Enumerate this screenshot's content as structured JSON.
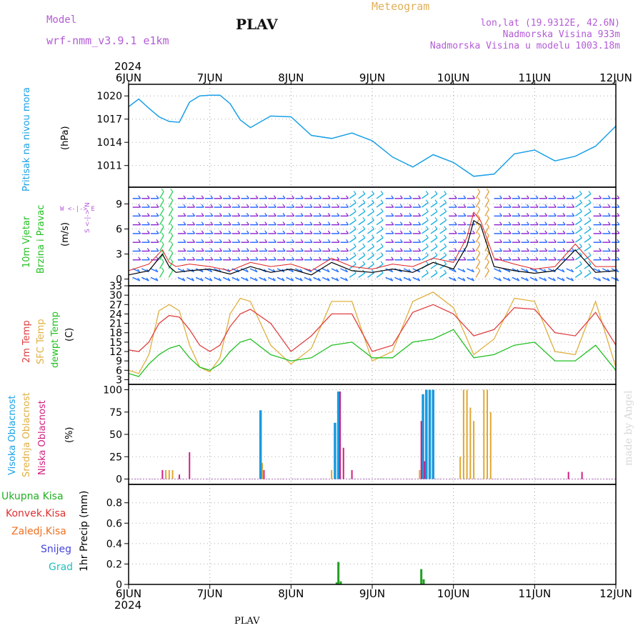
{
  "header": {
    "model_label": "Model",
    "model_name": "wrf-nmm_v3.9.1  e1km",
    "station": "PLAV",
    "meteogram": "Meteogram",
    "lonlat": "lon,lat (19.9312E, 42.6N)",
    "elevation": "Nadmorska Visina 933m",
    "model_elevation": "Nadmorska Visina u modelu 1003.18m",
    "year_top": "2024",
    "year_bottom": "2024",
    "footer_station": "PLAV",
    "watermark": "made by Angel"
  },
  "axis_labels": {
    "pressure_name": "Pritisak na nivou mora",
    "pressure_unit": "(hPa)",
    "wind_name1": "10m Vjetar",
    "wind_name2": "Brzina i Pravac",
    "wind_unit": "(m/s)",
    "wind_compass": "W <-|-> E",
    "wind_compass2": "S <-|-> N",
    "temp_name1": "2m Temp",
    "temp_name2": "SFC Temp",
    "temp_name3": "dewpt Temp",
    "temp_unit": "(C)",
    "cloud_name1": "Visoka Oblacnost",
    "cloud_name2": "Srednja Oblacnost",
    "cloud_name3": "Niska Oblacnost",
    "cloud_unit": "(%)",
    "precip_unit": "1hr Precip (mm)"
  },
  "precip_legend": [
    {
      "label": "Ukupna  Kisa",
      "color": "#22b022"
    },
    {
      "label": "Konvek.Kisa",
      "color": "#e03030"
    },
    {
      "label": "Zaledj.Kisa",
      "color": "#f07020"
    },
    {
      "label": "Snijeg",
      "color": "#4444dd"
    },
    {
      "label": "Grad",
      "color": "#20c0c0"
    }
  ],
  "colors": {
    "pressure": "#1aa0e6",
    "temp2m": "#e04040",
    "sfc": "#e0b040",
    "dewpt": "#22c022",
    "cloud_high": "#1a9ae0",
    "cloud_mid": "#e0a830",
    "cloud_low": "#d02080",
    "precip_total": "#22a022",
    "wind_purple": "#8a22d0",
    "wind_speed": "#000000",
    "wind_gust": "#e02020"
  },
  "chart_data": [
    {
      "type": "line",
      "name": "pressure",
      "x_ticks": [
        "6JUN",
        "7JUN",
        "8JUN",
        "9JUN",
        "10JUN",
        "11JUN",
        "12JUN"
      ],
      "y_ticks": [
        1011,
        1014,
        1017,
        1020
      ],
      "ylim": [
        1008.2,
        1021.5
      ],
      "x_hours": [
        0,
        3,
        6,
        9,
        12,
        15,
        18,
        21,
        24,
        27,
        30,
        33,
        36,
        42,
        48,
        54,
        60,
        66,
        72,
        78,
        84,
        90,
        96,
        102,
        108,
        114,
        120,
        126,
        132,
        138,
        144
      ],
      "values": [
        1018.6,
        1019.6,
        1018.4,
        1017.3,
        1016.7,
        1016.6,
        1019.2,
        1020.0,
        1020.1,
        1020.1,
        1019.0,
        1016.9,
        1015.9,
        1017.4,
        1017.3,
        1014.9,
        1014.5,
        1015.2,
        1014.2,
        1012.1,
        1010.8,
        1012.4,
        1011.4,
        1009.6,
        1009.9,
        1012.5,
        1013.0,
        1011.6,
        1012.2,
        1013.5,
        1016.1
      ]
    },
    {
      "type": "line",
      "name": "wind",
      "y_ticks": [
        0,
        3,
        6,
        9
      ],
      "ylim": [
        -0.8,
        11
      ],
      "x_hours": [
        0,
        6,
        10,
        12,
        14,
        18,
        24,
        30,
        36,
        42,
        48,
        54,
        60,
        66,
        72,
        78,
        84,
        90,
        96,
        100,
        102,
        104,
        108,
        114,
        120,
        126,
        132,
        138,
        144
      ],
      "speed": [
        0.5,
        1.0,
        3.0,
        1.5,
        0.8,
        1.0,
        1.2,
        0.6,
        1.5,
        0.8,
        1.2,
        0.5,
        2.0,
        1.0,
        0.8,
        1.2,
        0.8,
        2.0,
        1.2,
        4.0,
        7.0,
        6.5,
        1.5,
        1.0,
        0.7,
        1.0,
        3.5,
        0.8,
        1.0
      ],
      "gust": [
        1.0,
        1.8,
        3.5,
        2.0,
        1.5,
        1.8,
        1.5,
        1.0,
        2.0,
        1.5,
        1.8,
        1.0,
        2.5,
        1.5,
        1.2,
        1.8,
        1.5,
        2.5,
        2.0,
        5.0,
        8.0,
        7.0,
        2.5,
        1.8,
        1.2,
        1.5,
        4.2,
        1.5,
        1.5
      ]
    },
    {
      "type": "line",
      "name": "temperature",
      "y_ticks": [
        3,
        6,
        9,
        12,
        15,
        18,
        21,
        24,
        27,
        30,
        33
      ],
      "ylim": [
        1.5,
        33
      ],
      "x_hours": [
        0,
        3,
        6,
        9,
        12,
        15,
        18,
        21,
        24,
        27,
        30,
        33,
        36,
        42,
        48,
        54,
        60,
        66,
        72,
        78,
        84,
        90,
        96,
        102,
        108,
        114,
        120,
        126,
        132,
        138,
        144
      ],
      "temp2m": [
        12.5,
        12,
        15,
        21,
        23.5,
        23,
        19,
        14,
        12,
        14,
        20,
        24,
        25.5,
        21,
        12,
        17,
        24,
        24,
        12,
        14,
        24.5,
        27,
        24,
        17,
        19,
        26,
        25.5,
        18,
        17,
        24.5,
        14
      ],
      "sfc": [
        6,
        5,
        11,
        25,
        27,
        25,
        14,
        7,
        5.5,
        10,
        24,
        29,
        28,
        14,
        8,
        13,
        28,
        28,
        9,
        12,
        28,
        31,
        26,
        11,
        16,
        29,
        28,
        12,
        11,
        28,
        7
      ],
      "dewpt": [
        5,
        4,
        8,
        11,
        13,
        14,
        10,
        7,
        6,
        8,
        12,
        15,
        16,
        11,
        9,
        10,
        14,
        15,
        10,
        10,
        15,
        16,
        19,
        10,
        11,
        14,
        15,
        9,
        9,
        14,
        6
      ]
    },
    {
      "type": "bar",
      "name": "cloud",
      "y_ticks": [
        0,
        25,
        50,
        75,
        100
      ],
      "ylim": [
        -6,
        106
      ],
      "high": [
        {
          "h": 39,
          "v": 77
        },
        {
          "h": 61,
          "v": 63
        },
        {
          "h": 62,
          "v": 98
        },
        {
          "h": 87,
          "v": 95
        },
        {
          "h": 88,
          "v": 100
        },
        {
          "h": 89,
          "v": 100
        },
        {
          "h": 90,
          "v": 100
        }
      ],
      "mid": [
        {
          "h": 11,
          "v": 10
        },
        {
          "h": 12,
          "v": 10
        },
        {
          "h": 13,
          "v": 10
        },
        {
          "h": 39.5,
          "v": 18
        },
        {
          "h": 60,
          "v": 10
        },
        {
          "h": 86,
          "v": 10
        },
        {
          "h": 98,
          "v": 25
        },
        {
          "h": 99,
          "v": 100
        },
        {
          "h": 100,
          "v": 100
        },
        {
          "h": 101,
          "v": 80
        },
        {
          "h": 102,
          "v": 65
        },
        {
          "h": 105,
          "v": 100
        },
        {
          "h": 106,
          "v": 100
        },
        {
          "h": 107,
          "v": 75
        }
      ],
      "low": [
        {
          "h": 10,
          "v": 10
        },
        {
          "h": 15,
          "v": 5
        },
        {
          "h": 18,
          "v": 30
        },
        {
          "h": 40,
          "v": 10
        },
        {
          "h": 62.5,
          "v": 98
        },
        {
          "h": 63.5,
          "v": 35
        },
        {
          "h": 66,
          "v": 10
        },
        {
          "h": 86.5,
          "v": 65
        },
        {
          "h": 87.5,
          "v": 20
        },
        {
          "h": 130,
          "v": 8
        },
        {
          "h": 134,
          "v": 8
        }
      ]
    },
    {
      "type": "bar",
      "name": "precip",
      "y_ticks": [
        0,
        0.2,
        0.4,
        0.6,
        0.8
      ],
      "y_tick_labels": [
        "0",
        "0.2",
        "0.4",
        "0.6",
        "0.8"
      ],
      "ylim": [
        0,
        0.98
      ],
      "total": [
        {
          "h": 61.5,
          "v": 0.02
        },
        {
          "h": 62,
          "v": 0.22
        },
        {
          "h": 62.7,
          "v": 0.03
        },
        {
          "h": 86.5,
          "v": 0.15
        },
        {
          "h": 87.2,
          "v": 0.05
        }
      ]
    }
  ]
}
